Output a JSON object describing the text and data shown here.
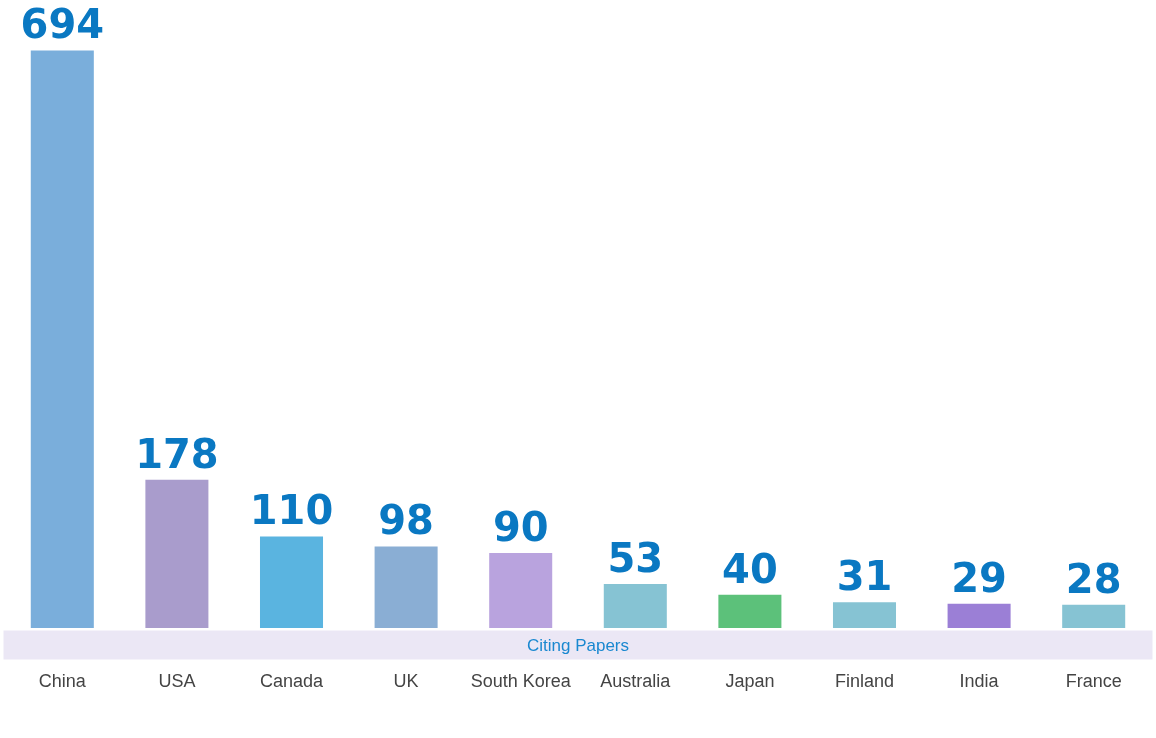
{
  "chart_data": {
    "type": "bar",
    "categories": [
      "China",
      "USA",
      "Canada",
      "UK",
      "South Korea",
      "Australia",
      "Japan",
      "Finland",
      "India",
      "France"
    ],
    "values": [
      694,
      178,
      110,
      98,
      90,
      53,
      40,
      31,
      29,
      28
    ],
    "colors": [
      "#7aaedb",
      "#a99ccc",
      "#5ab4e0",
      "#8aaed4",
      "#b9a3de",
      "#86c3d3",
      "#5cc17a",
      "#86c3d3",
      "#9b7fd6",
      "#86c3d3"
    ],
    "data_labels": true,
    "annotations": [
      "Citing Papers"
    ]
  }
}
